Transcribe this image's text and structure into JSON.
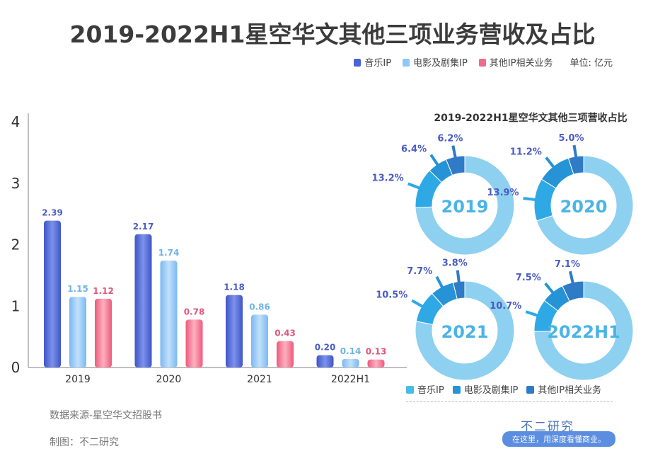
{
  "title": "2019-2022H1星空华文其他三项业务营收及占比",
  "unit": "单位: 亿元",
  "colors": {
    "music": "#4a63d6",
    "film": "#8ec8f6",
    "other": "#f06a8a",
    "d_music": "#8dd0f0",
    "d_film_leg": "#45bde9",
    "d_film": "#2fa9e6",
    "d_mid": "#2593d6",
    "d_other": "#2f7bc6"
  },
  "chart_data": [
    {
      "type": "bar",
      "title": "",
      "categories": [
        "2019",
        "2020",
        "2021",
        "2022H1"
      ],
      "series": [
        {
          "name": "音乐IP",
          "values": [
            2.39,
            2.17,
            1.18,
            0.2
          ]
        },
        {
          "name": "电影及剧集IP",
          "values": [
            1.15,
            1.74,
            0.86,
            0.14
          ]
        },
        {
          "name": "其他IP相关业务",
          "values": [
            1.12,
            0.78,
            0.43,
            0.13
          ]
        }
      ],
      "value_labels": [
        [
          "2.39",
          "2.17",
          "1.18",
          "0.20"
        ],
        [
          "1.15",
          "1.74",
          "0.86",
          "0.14"
        ],
        [
          "1.12",
          "0.78",
          "0.43",
          "0.13"
        ]
      ],
      "ylim": [
        0,
        4
      ],
      "yticks": [
        "0",
        "1",
        "2",
        "3",
        "4"
      ],
      "legend": "top-right"
    },
    {
      "type": "pie",
      "title": "2019-2022H1星空华文其他三项营收占比",
      "legend_labels": [
        "音乐IP",
        "电影及剧集IP",
        "其他IP相关业务"
      ],
      "donuts": [
        {
          "label": "2019",
          "slices": [
            13.2,
            6.4,
            6.2
          ],
          "slice_labels": [
            "13.2%",
            "6.4%",
            "6.2%"
          ]
        },
        {
          "label": "2020",
          "slices": [
            13.9,
            11.2,
            5.0
          ],
          "slice_labels": [
            "13.9%",
            "11.2%",
            "5.0%"
          ]
        },
        {
          "label": "2021",
          "slices": [
            10.5,
            7.7,
            3.8
          ],
          "slice_labels": [
            "10.5%",
            "7.7%",
            "3.8%"
          ]
        },
        {
          "label": "2022H1",
          "slices": [
            10.7,
            7.5,
            7.1
          ],
          "slice_labels": [
            "10.7%",
            "7.5%",
            "7.1%"
          ]
        }
      ]
    }
  ],
  "footer": {
    "source": "数据来源-星空华文招股书",
    "maker": "制图：不二研究"
  },
  "brand": {
    "name": "不二研究",
    "slogan": "在这里，用深度看懂商业。"
  }
}
